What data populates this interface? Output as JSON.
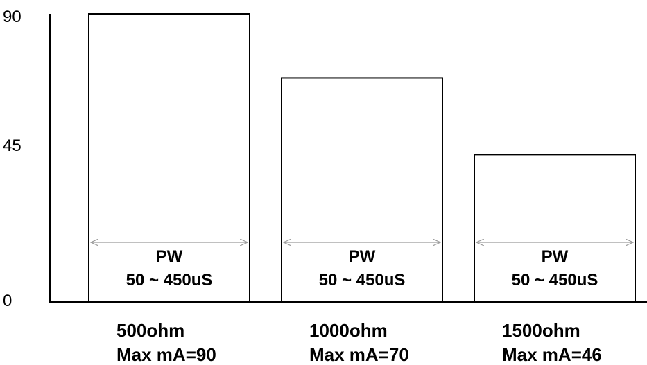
{
  "chart_data": {
    "type": "bar",
    "categories": [
      "500ohm",
      "1000ohm",
      "1500ohm"
    ],
    "category_sublabels": [
      "Max mA=90",
      "Max mA=70",
      "Max mA=46"
    ],
    "values": [
      90,
      70,
      46
    ],
    "ylim": [
      0,
      90
    ],
    "yticks": [
      "0",
      "45",
      "90"
    ],
    "bar_annotation": {
      "line1": "PW",
      "line2": "50 ~ 450uS",
      "arrow": "double-headed"
    },
    "title": "",
    "xlabel": "",
    "ylabel": "",
    "grid": false,
    "legend": "none"
  }
}
